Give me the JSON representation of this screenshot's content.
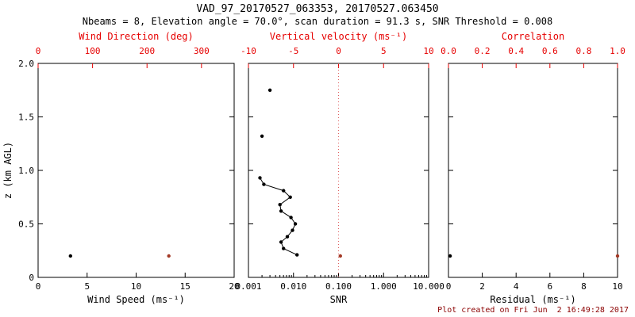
{
  "header": {
    "title": "VAD_97_20170527_063353, 20170527.063450",
    "subtitle": "Nbeams = 8, Elevation angle = 70.0°, scan duration = 91.3 s, SNR Threshold = 0.008"
  },
  "footer": {
    "created_text": "Plot created on Fri Jun  2 16:49:28 2017"
  },
  "colors": {
    "axis": "#000000",
    "secondary_axis": "#e60000",
    "primary_marker": "#000000",
    "secondary_marker": "#a33a26",
    "reference_line": "#e06060",
    "footer_text": "#8b0000"
  },
  "y_axis": {
    "label": "z (km AGL)",
    "range": [
      0,
      2
    ],
    "ticks": [
      0,
      0.5,
      1.0,
      1.5,
      2.0
    ],
    "tick_labels": [
      "0",
      "0.5",
      "1.0",
      "1.5",
      "2.0"
    ]
  },
  "chart_data": [
    {
      "name": "wind",
      "type": "scatter",
      "bottom_axis": {
        "label": "Wind Speed (ms⁻¹)",
        "range": [
          0,
          20
        ],
        "ticks": [
          0,
          5,
          10,
          15,
          20
        ],
        "tick_labels": [
          "0",
          "5",
          "10",
          "15",
          "20"
        ]
      },
      "top_axis": {
        "label": "Wind Direction (deg)",
        "range": [
          0,
          360
        ],
        "ticks": [
          0,
          100,
          200,
          300
        ],
        "tick_labels": [
          "0",
          "100",
          "200",
          "300"
        ],
        "color": "#e60000"
      },
      "series": [
        {
          "name": "wind-speed",
          "axis": "bottom",
          "style": "markers",
          "color": "#000000",
          "points": [
            {
              "x": 3.3,
              "z": 0.2
            }
          ]
        },
        {
          "name": "wind-direction",
          "axis": "top",
          "style": "markers",
          "color": "#a33a26",
          "points": [
            {
              "x": 240,
              "z": 0.2
            }
          ]
        }
      ]
    },
    {
      "name": "snr",
      "type": "line",
      "bottom_axis": {
        "label": "SNR",
        "scale": "log",
        "range": [
          0.001,
          10
        ],
        "ticks": [
          0.001,
          0.01,
          0.1,
          1.0,
          10.0
        ],
        "tick_labels": [
          "0.001",
          "0.010",
          "0.100",
          "1.000",
          "10.000"
        ]
      },
      "top_axis": {
        "label": "Vertical velocity (ms⁻¹)",
        "range": [
          -10,
          10
        ],
        "ticks": [
          -10,
          -5,
          0,
          5,
          10
        ],
        "tick_labels": [
          "-10",
          "-5",
          "0",
          "5",
          "10"
        ],
        "color": "#e60000"
      },
      "reference_line": {
        "axis": "top",
        "value": 0,
        "style": "dotted"
      },
      "series": [
        {
          "name": "snr-isolated",
          "axis": "bottom",
          "style": "markers",
          "color": "#000000",
          "points": [
            {
              "x": 0.003,
              "z": 1.75
            },
            {
              "x": 0.002,
              "z": 1.32
            }
          ]
        },
        {
          "name": "snr-profile",
          "axis": "bottom",
          "style": "line+markers",
          "color": "#000000",
          "points": [
            {
              "x": 0.0018,
              "z": 0.93
            },
            {
              "x": 0.0022,
              "z": 0.87
            },
            {
              "x": 0.006,
              "z": 0.81
            },
            {
              "x": 0.0085,
              "z": 0.75
            },
            {
              "x": 0.005,
              "z": 0.68
            },
            {
              "x": 0.0053,
              "z": 0.62
            },
            {
              "x": 0.0088,
              "z": 0.56
            },
            {
              "x": 0.011,
              "z": 0.5
            },
            {
              "x": 0.0095,
              "z": 0.44
            },
            {
              "x": 0.0073,
              "z": 0.38
            },
            {
              "x": 0.0053,
              "z": 0.33
            },
            {
              "x": 0.006,
              "z": 0.27
            },
            {
              "x": 0.012,
              "z": 0.21
            }
          ]
        },
        {
          "name": "vertical-velocity",
          "axis": "top",
          "style": "markers",
          "color": "#a33a26",
          "points": [
            {
              "x": 0.2,
              "z": 0.2
            }
          ]
        }
      ]
    },
    {
      "name": "residual",
      "type": "scatter",
      "bottom_axis": {
        "label": "Residual (ms⁻¹)",
        "range": [
          0,
          10
        ],
        "ticks": [
          0,
          2,
          4,
          6,
          8,
          10
        ],
        "tick_labels": [
          "0",
          "2",
          "4",
          "6",
          "8",
          "10"
        ]
      },
      "top_axis": {
        "label": "Correlation",
        "range": [
          0.0,
          1.0
        ],
        "ticks": [
          0.0,
          0.2,
          0.4,
          0.6,
          0.8,
          1.0
        ],
        "tick_labels": [
          "0.0",
          "0.2",
          "0.4",
          "0.6",
          "0.8",
          "1.0"
        ],
        "color": "#e60000"
      },
      "series": [
        {
          "name": "residual",
          "axis": "bottom",
          "style": "markers",
          "color": "#000000",
          "points": [
            {
              "x": 0.1,
              "z": 0.2
            }
          ]
        },
        {
          "name": "correlation",
          "axis": "top",
          "style": "markers",
          "color": "#a33a26",
          "points": [
            {
              "x": 1.0,
              "z": 0.2
            }
          ]
        }
      ]
    }
  ]
}
